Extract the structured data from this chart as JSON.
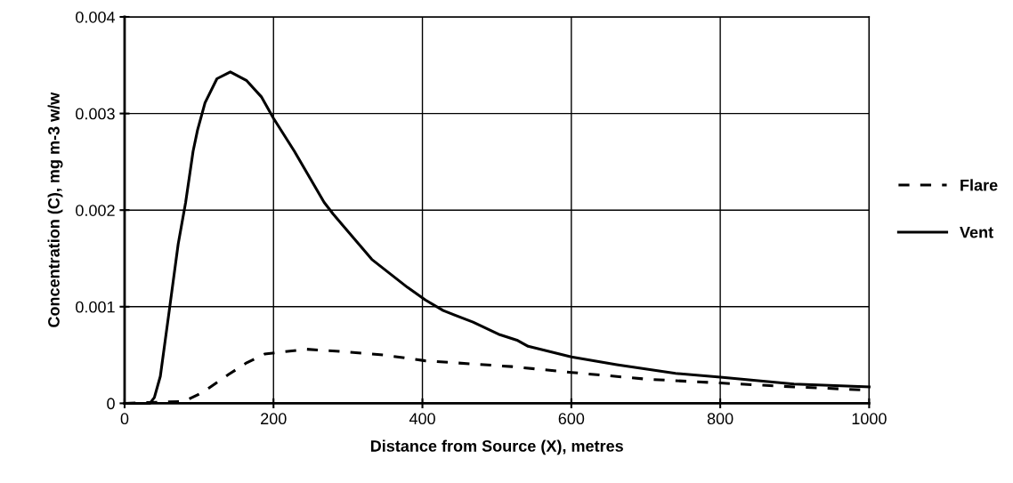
{
  "chart_data": {
    "type": "line",
    "xlabel": "Distance from Source (X), metres",
    "ylabel": "Concentration (C), mg m-3 w/w",
    "xlim": [
      0,
      1000
    ],
    "xticks": [
      0,
      200,
      400,
      600,
      800,
      1000
    ],
    "ylim": [
      0,
      0.004
    ],
    "yticks": [
      0,
      0.001,
      0.002,
      0.003,
      0.004
    ],
    "grid": true,
    "legend": "right",
    "marker": "none",
    "series": [
      {
        "name": "Flare",
        "color": "#000000",
        "line_style": "dashed",
        "x": [
          0,
          80,
          104,
          140,
          164,
          188,
          244,
          284,
          348,
          404,
          520,
          600,
          701,
          800,
          899,
          988,
          1000
        ],
        "values": [
          0,
          2e-05,
          0.00011,
          0.0003,
          0.00042,
          0.00051,
          0.00056,
          0.00054,
          0.0005,
          0.00044,
          0.00038,
          0.00032,
          0.00025,
          0.00021,
          0.00017,
          0.00014,
          0.00014
        ]
      },
      {
        "name": "Vent",
        "color": "#000000",
        "line_style": "solid",
        "x": [
          0,
          34,
          40,
          48,
          60,
          72,
          82,
          92,
          98,
          108,
          124,
          142,
          164,
          184,
          200,
          228,
          268,
          280,
          332,
          380,
          404,
          428,
          468,
          504,
          528,
          542,
          600,
          661,
          740,
          800,
          899,
          1000
        ],
        "values": [
          0,
          0,
          6e-05,
          0.00028,
          0.00096,
          0.00165,
          0.00208,
          0.00261,
          0.00283,
          0.00311,
          0.00336,
          0.00343,
          0.00334,
          0.00317,
          0.00295,
          0.00261,
          0.00208,
          0.00196,
          0.00149,
          0.0012,
          0.00107,
          0.00096,
          0.00084,
          0.00071,
          0.00065,
          0.00059,
          0.00048,
          0.0004,
          0.00031,
          0.00027,
          0.0002,
          0.00017
        ]
      }
    ]
  }
}
